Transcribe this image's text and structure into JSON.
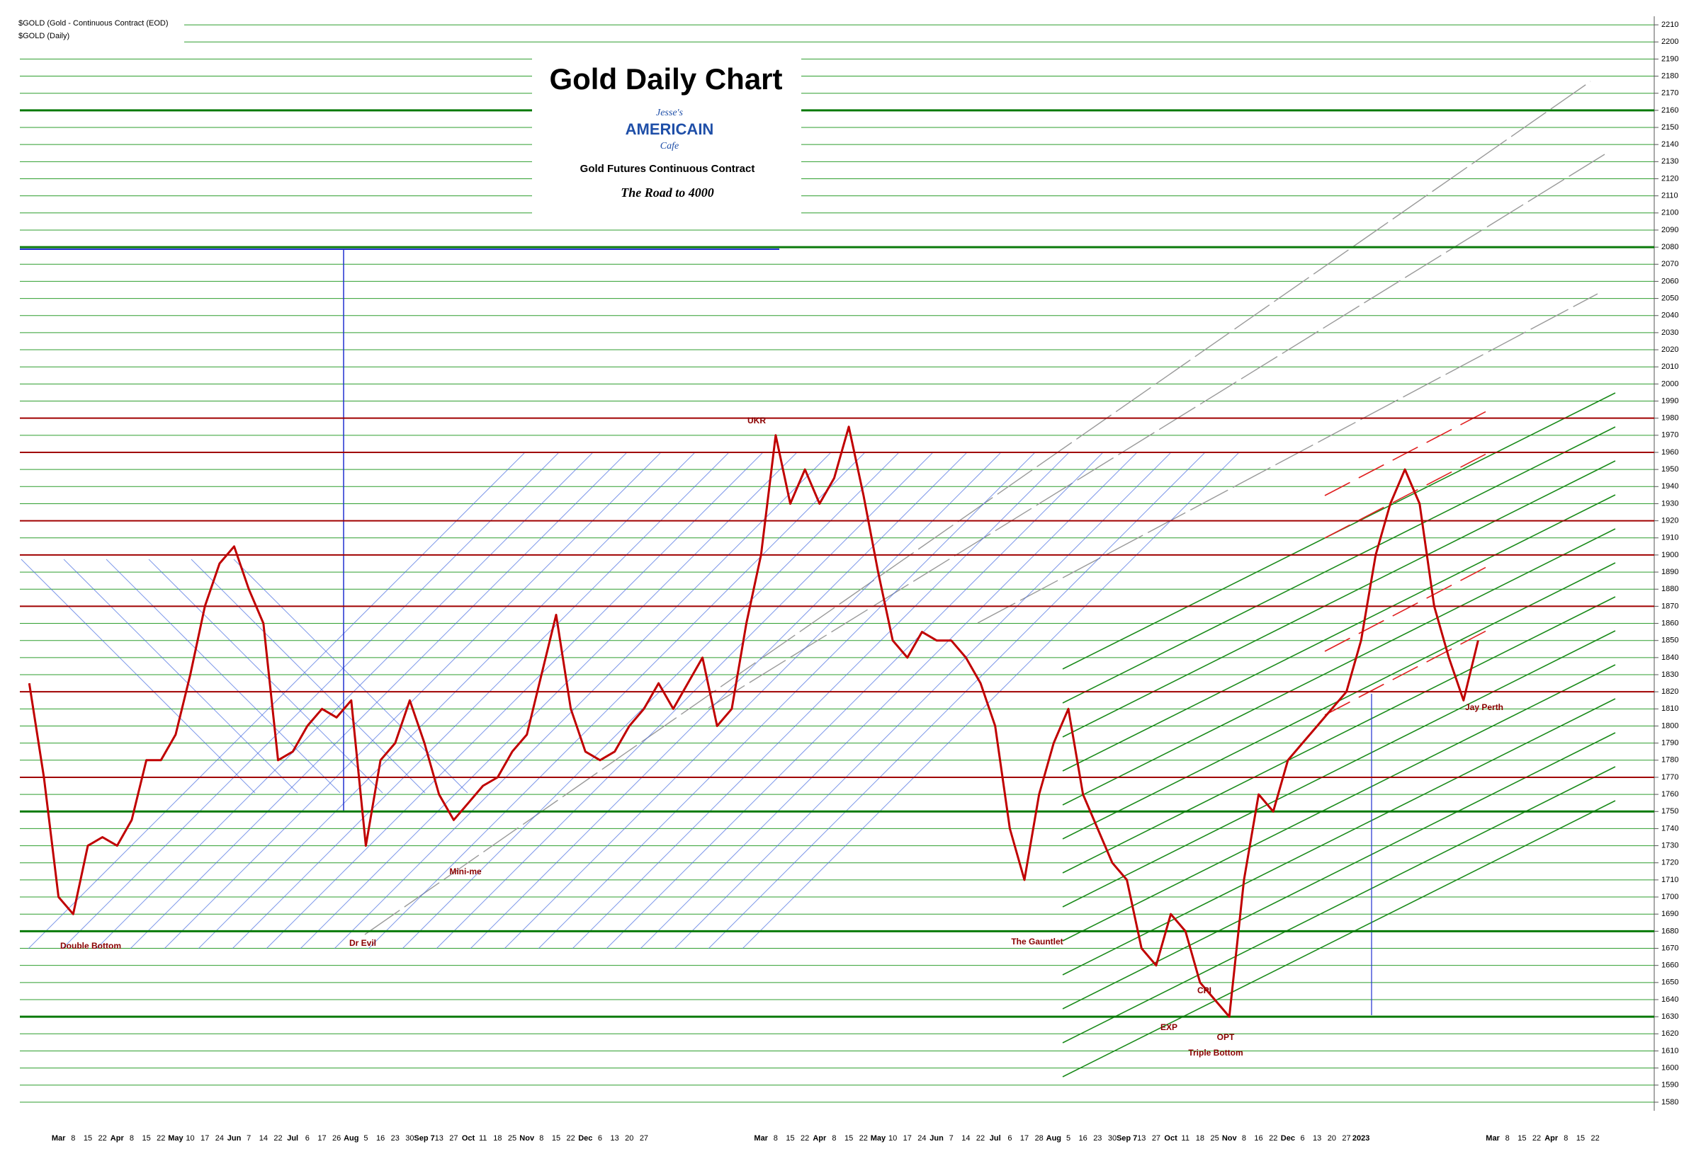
{
  "chart_data": {
    "type": "line",
    "title": "Gold Daily Chart",
    "subtitle": "Gold Futures Continuous Contract",
    "tagline": "The Road to 4000",
    "logo": [
      "Jesse's",
      "AMERICAIN",
      "Cafe"
    ],
    "symbol_label": "$GOLD (Gold - Continuous Contract (EOD)",
    "symbol_sublabel": "$GOLD (Daily)",
    "categories": [
      null,
      null,
      "Mar",
      "8",
      "15",
      "22",
      "Apr",
      "8",
      "15",
      "22",
      "May",
      "10",
      "17",
      "24",
      "Jun",
      "7",
      "14",
      "22",
      "Jul",
      "6",
      "17",
      "26",
      "Aug",
      "5",
      "16",
      "23",
      "30",
      "Sep 7",
      "13",
      "27",
      "Oct",
      "11",
      "18",
      "25",
      "Nov",
      "8",
      "15",
      "22",
      "Dec",
      "6",
      "13",
      "20",
      "27",
      null,
      null,
      null,
      null,
      null,
      null,
      null,
      "Mar",
      "8",
      "15",
      "22",
      "Apr",
      "8",
      "15",
      "22",
      "May",
      "10",
      "17",
      "24",
      "Jun",
      "7",
      "14",
      "22",
      "Jul",
      "6",
      "17",
      "28",
      "Aug",
      "5",
      "16",
      "23",
      "30",
      "Sep 7",
      "13",
      "27",
      "Oct",
      "11",
      "18",
      "25",
      "Nov",
      "8",
      "16",
      "22",
      "Dec",
      "6",
      "13",
      "20",
      "27",
      "2023",
      null,
      null,
      null,
      null,
      null,
      null,
      null,
      null,
      "Mar",
      "8",
      "15",
      "22",
      "Apr",
      "8",
      "15",
      "22"
    ],
    "series": [
      {
        "name": "$GOLD",
        "color": "#c00000",
        "values": [
          1825,
          1770,
          1700,
          1690,
          1730,
          1735,
          1730,
          1745,
          1780,
          1780,
          1795,
          1830,
          1870,
          1895,
          1905,
          1880,
          1860,
          1780,
          1785,
          1800,
          1810,
          1805,
          1815,
          1730,
          1780,
          1790,
          1815,
          1790,
          1760,
          1745,
          1755,
          1765,
          1770,
          1785,
          1795,
          1830,
          1865,
          1810,
          1785,
          1780,
          1785,
          1800,
          1810,
          1825,
          1810,
          1825,
          1840,
          1800,
          1810,
          1860,
          1900,
          1970,
          1930,
          1950,
          1930,
          1945,
          1975,
          1935,
          1890,
          1850,
          1840,
          1855,
          1850,
          1850,
          1840,
          1825,
          1800,
          1740,
          1710,
          1760,
          1790,
          1810,
          1760,
          1740,
          1720,
          1710,
          1670,
          1660,
          1690,
          1680,
          1650,
          1640,
          1630,
          1710,
          1760,
          1750,
          1780,
          1790,
          1800,
          1810,
          1820,
          1850,
          1900,
          1930,
          1950,
          1930,
          1870,
          1840,
          1815,
          1850,
          null,
          null,
          null,
          null,
          null,
          null,
          null,
          null
        ]
      }
    ],
    "ylim": [
      1575,
      2215
    ],
    "yticks": [
      1580,
      1590,
      1600,
      1610,
      1620,
      1630,
      1640,
      1650,
      1660,
      1670,
      1680,
      1690,
      1700,
      1710,
      1720,
      1730,
      1740,
      1750,
      1760,
      1770,
      1780,
      1790,
      1800,
      1810,
      1820,
      1830,
      1840,
      1850,
      1860,
      1870,
      1880,
      1890,
      1900,
      1910,
      1920,
      1930,
      1940,
      1950,
      1960,
      1970,
      1980,
      1990,
      2000,
      2010,
      2020,
      2030,
      2040,
      2050,
      2060,
      2070,
      2080,
      2090,
      2100,
      2110,
      2120,
      2130,
      2140,
      2150,
      2160,
      2170,
      2180,
      2190,
      2200,
      2210
    ],
    "grid": true,
    "grid_color": "#2e9e2e",
    "red_levels": [
      1980,
      1960,
      1920,
      1900,
      1870,
      1820,
      1770
    ],
    "red_color": "#a00000",
    "key_levels": [
      2160,
      2080,
      1750,
      1680,
      1630
    ],
    "key_color": "#0a7a0a",
    "annotations": [
      "Double Bottom",
      "Dr Evil",
      "Mini-me",
      "UKR",
      "The Gauntlet",
      "EXP",
      "CPI",
      "OPT",
      "Triple Bottom",
      "Jay Perth"
    ]
  }
}
